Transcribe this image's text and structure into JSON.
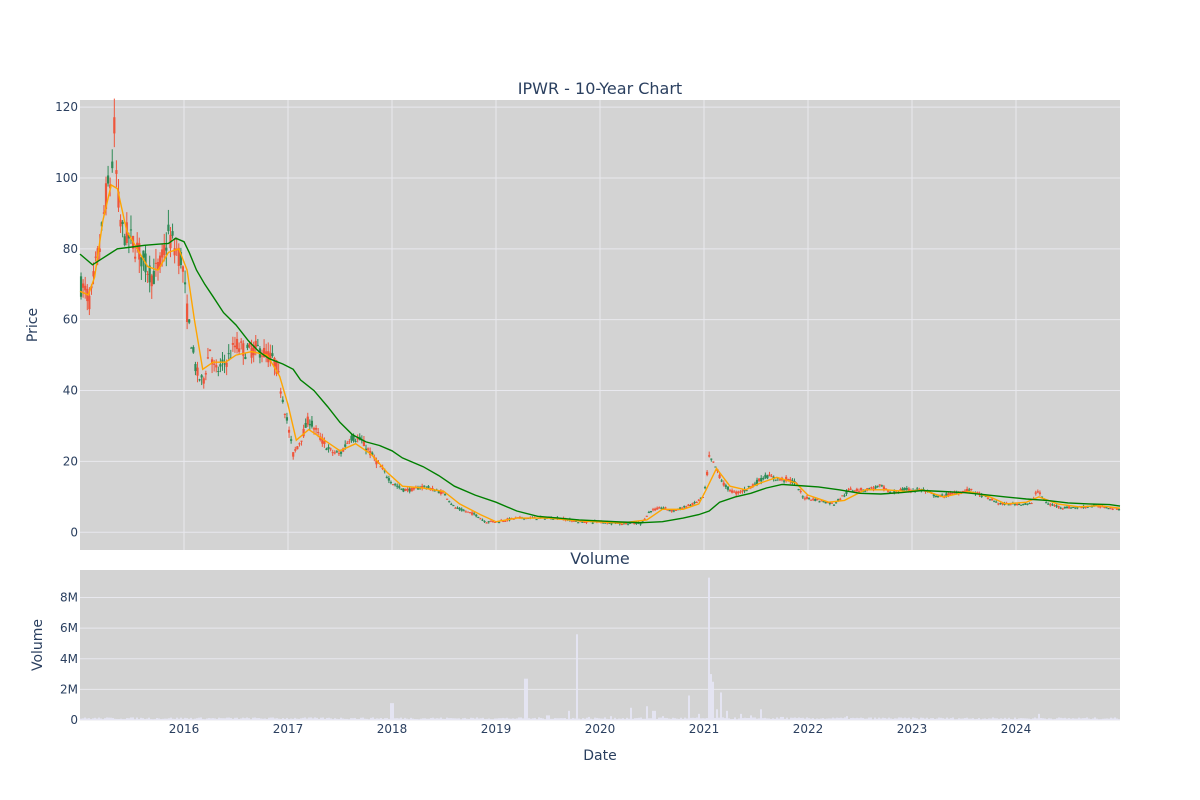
{
  "chart_data": [
    {
      "type": "candlestick",
      "title": "IPWR - 10-Year Chart",
      "xlabel": "",
      "ylabel": "Price",
      "ylim": [
        -5,
        122
      ],
      "xlim": [
        2015.0,
        2025.0
      ],
      "grid": true,
      "x_ticks": [
        "2016",
        "2017",
        "2018",
        "2019",
        "2020",
        "2021",
        "2022",
        "2023",
        "2024"
      ],
      "y_ticks": [
        0,
        20,
        40,
        60,
        80,
        100,
        120
      ],
      "colors": {
        "increasing": "#2e8b57",
        "decreasing": "#ef553b",
        "ma_short": "#ffa500",
        "ma_long": "#008000",
        "background": "#d3d3d3",
        "grid": "#e8e8ee"
      },
      "price_path": [
        [
          2015.0,
          70
        ],
        [
          2015.05,
          68
        ],
        [
          2015.1,
          65
        ],
        [
          2015.15,
          75
        ],
        [
          2015.2,
          82
        ],
        [
          2015.25,
          95
        ],
        [
          2015.3,
          100
        ],
        [
          2015.33,
          113
        ],
        [
          2015.36,
          95
        ],
        [
          2015.4,
          85
        ],
        [
          2015.48,
          83
        ],
        [
          2015.55,
          80
        ],
        [
          2015.62,
          76
        ],
        [
          2015.7,
          72
        ],
        [
          2015.78,
          76
        ],
        [
          2015.85,
          84
        ],
        [
          2015.92,
          80
        ],
        [
          2015.98,
          77
        ],
        [
          2016.03,
          62
        ],
        [
          2016.08,
          52
        ],
        [
          2016.12,
          45
        ],
        [
          2016.18,
          42
        ],
        [
          2016.25,
          52
        ],
        [
          2016.3,
          45
        ],
        [
          2016.4,
          48
        ],
        [
          2016.5,
          53
        ],
        [
          2016.6,
          51
        ],
        [
          2016.7,
          52
        ],
        [
          2016.8,
          50
        ],
        [
          2016.88,
          48
        ],
        [
          2016.95,
          38
        ],
        [
          2017.05,
          22
        ],
        [
          2017.12,
          26
        ],
        [
          2017.2,
          32
        ],
        [
          2017.3,
          27
        ],
        [
          2017.4,
          23
        ],
        [
          2017.5,
          22
        ],
        [
          2017.6,
          27
        ],
        [
          2017.7,
          26
        ],
        [
          2017.8,
          22
        ],
        [
          2017.9,
          18
        ],
        [
          2018.0,
          14
        ],
        [
          2018.1,
          12
        ],
        [
          2018.2,
          12
        ],
        [
          2018.3,
          13
        ],
        [
          2018.4,
          12
        ],
        [
          2018.5,
          11
        ],
        [
          2018.6,
          7
        ],
        [
          2018.7,
          6
        ],
        [
          2018.8,
          5
        ],
        [
          2018.9,
          3
        ],
        [
          2019.0,
          3
        ],
        [
          2019.2,
          4
        ],
        [
          2019.4,
          4
        ],
        [
          2019.6,
          4
        ],
        [
          2019.8,
          3
        ],
        [
          2020.0,
          3
        ],
        [
          2020.2,
          2.5
        ],
        [
          2020.4,
          2.5
        ],
        [
          2020.48,
          6
        ],
        [
          2020.6,
          7
        ],
        [
          2020.7,
          6
        ],
        [
          2020.8,
          7
        ],
        [
          2020.9,
          8
        ],
        [
          2021.0,
          10
        ],
        [
          2021.05,
          21
        ],
        [
          2021.1,
          19
        ],
        [
          2021.2,
          13
        ],
        [
          2021.3,
          11
        ],
        [
          2021.4,
          12
        ],
        [
          2021.5,
          14
        ],
        [
          2021.6,
          16
        ],
        [
          2021.7,
          15
        ],
        [
          2021.8,
          15
        ],
        [
          2021.88,
          14
        ],
        [
          2021.95,
          10
        ],
        [
          2022.1,
          9
        ],
        [
          2022.25,
          8
        ],
        [
          2022.4,
          12
        ],
        [
          2022.55,
          12
        ],
        [
          2022.7,
          13
        ],
        [
          2022.8,
          11
        ],
        [
          2022.9,
          12
        ],
        [
          2023.0,
          12
        ],
        [
          2023.1,
          12
        ],
        [
          2023.25,
          10
        ],
        [
          2023.4,
          11
        ],
        [
          2023.55,
          12
        ],
        [
          2023.7,
          10
        ],
        [
          2023.85,
          8
        ],
        [
          2024.0,
          8
        ],
        [
          2024.15,
          8
        ],
        [
          2024.2,
          12
        ],
        [
          2024.3,
          8
        ],
        [
          2024.45,
          7
        ],
        [
          2024.6,
          7
        ],
        [
          2024.75,
          7.5
        ],
        [
          2024.9,
          7
        ],
        [
          2025.0,
          6.5
        ]
      ],
      "series": [
        {
          "name": "",
          "values": [
            [
              2015.0,
              68
            ],
            [
              2015.08,
              67
            ],
            [
              2015.14,
              72
            ],
            [
              2015.22,
              88
            ],
            [
              2015.3,
              98
            ],
            [
              2015.36,
              97
            ],
            [
              2015.45,
              85
            ],
            [
              2015.55,
              80
            ],
            [
              2015.65,
              75
            ],
            [
              2015.75,
              74
            ],
            [
              2015.85,
              79
            ],
            [
              2015.95,
              80
            ],
            [
              2016.03,
              74
            ],
            [
              2016.1,
              60
            ],
            [
              2016.18,
              46
            ],
            [
              2016.28,
              48
            ],
            [
              2016.4,
              48
            ],
            [
              2016.5,
              50
            ],
            [
              2016.65,
              51
            ],
            [
              2016.8,
              50
            ],
            [
              2016.92,
              44
            ],
            [
              2017.0,
              36
            ],
            [
              2017.08,
              26
            ],
            [
              2017.2,
              29
            ],
            [
              2017.35,
              26
            ],
            [
              2017.5,
              23
            ],
            [
              2017.65,
              25
            ],
            [
              2017.8,
              22
            ],
            [
              2017.95,
              17
            ],
            [
              2018.1,
              13
            ],
            [
              2018.3,
              12.5
            ],
            [
              2018.5,
              11.5
            ],
            [
              2018.65,
              8
            ],
            [
              2018.85,
              5
            ],
            [
              2019.0,
              3
            ],
            [
              2019.2,
              4
            ],
            [
              2019.5,
              4
            ],
            [
              2019.8,
              3.2
            ],
            [
              2020.2,
              2.6
            ],
            [
              2020.45,
              3.5
            ],
            [
              2020.6,
              6.5
            ],
            [
              2020.8,
              6.5
            ],
            [
              2020.95,
              8
            ],
            [
              2021.02,
              12
            ],
            [
              2021.12,
              18
            ],
            [
              2021.25,
              13
            ],
            [
              2021.4,
              12
            ],
            [
              2021.55,
              14
            ],
            [
              2021.7,
              15.5
            ],
            [
              2021.88,
              14
            ],
            [
              2022.0,
              10.5
            ],
            [
              2022.2,
              8.5
            ],
            [
              2022.35,
              9
            ],
            [
              2022.55,
              12
            ],
            [
              2022.75,
              12
            ],
            [
              2022.95,
              11.5
            ],
            [
              2023.1,
              12
            ],
            [
              2023.3,
              10
            ],
            [
              2023.55,
              11.5
            ],
            [
              2023.75,
              10
            ],
            [
              2023.9,
              8
            ],
            [
              2024.1,
              8.5
            ],
            [
              2024.22,
              10
            ],
            [
              2024.4,
              8
            ],
            [
              2024.6,
              7.2
            ],
            [
              2024.8,
              7.5
            ],
            [
              2025.0,
              6.8
            ]
          ]
        },
        {
          "name": "",
          "values": [
            [
              2015.0,
              78.5
            ],
            [
              2015.06,
              77
            ],
            [
              2015.12,
              75.5
            ],
            [
              2015.2,
              77
            ],
            [
              2015.28,
              78.5
            ],
            [
              2015.36,
              80
            ],
            [
              2015.5,
              80.5
            ],
            [
              2015.62,
              81
            ],
            [
              2015.75,
              81.3
            ],
            [
              2015.85,
              81.5
            ],
            [
              2015.92,
              83
            ],
            [
              2016.0,
              82
            ],
            [
              2016.05,
              79
            ],
            [
              2016.12,
              74
            ],
            [
              2016.2,
              70
            ],
            [
              2016.28,
              66.5
            ],
            [
              2016.38,
              62
            ],
            [
              2016.5,
              58.5
            ],
            [
              2016.62,
              54
            ],
            [
              2016.72,
              51
            ],
            [
              2016.82,
              49
            ],
            [
              2016.95,
              47.5
            ],
            [
              2017.05,
              46
            ],
            [
              2017.12,
              43
            ],
            [
              2017.25,
              40
            ],
            [
              2017.38,
              35.5
            ],
            [
              2017.5,
              31
            ],
            [
              2017.62,
              27.5
            ],
            [
              2017.75,
              25.5
            ],
            [
              2017.88,
              24.5
            ],
            [
              2018.0,
              23
            ],
            [
              2018.1,
              21
            ],
            [
              2018.3,
              18.5
            ],
            [
              2018.45,
              16
            ],
            [
              2018.6,
              13
            ],
            [
              2018.8,
              10.5
            ],
            [
              2019.0,
              8.5
            ],
            [
              2019.2,
              6
            ],
            [
              2019.4,
              4.5
            ],
            [
              2019.6,
              4
            ],
            [
              2019.8,
              3.5
            ],
            [
              2020.0,
              3.2
            ],
            [
              2020.2,
              2.9
            ],
            [
              2020.4,
              2.7
            ],
            [
              2020.6,
              3
            ],
            [
              2020.8,
              4
            ],
            [
              2020.95,
              5
            ],
            [
              2021.05,
              6
            ],
            [
              2021.15,
              8.5
            ],
            [
              2021.3,
              10
            ],
            [
              2021.45,
              11
            ],
            [
              2021.6,
              12.5
            ],
            [
              2021.75,
              13.5
            ],
            [
              2021.9,
              13.2
            ],
            [
              2022.1,
              12.8
            ],
            [
              2022.3,
              12
            ],
            [
              2022.5,
              11
            ],
            [
              2022.7,
              10.8
            ],
            [
              2022.9,
              11.2
            ],
            [
              2023.1,
              11.8
            ],
            [
              2023.3,
              11.5
            ],
            [
              2023.5,
              11.2
            ],
            [
              2023.7,
              10.6
            ],
            [
              2023.9,
              10
            ],
            [
              2024.1,
              9.4
            ],
            [
              2024.3,
              9
            ],
            [
              2024.5,
              8.3
            ],
            [
              2024.7,
              8
            ],
            [
              2024.9,
              7.8
            ],
            [
              2025.0,
              7.4
            ]
          ]
        }
      ]
    },
    {
      "type": "bar",
      "title": "Volume",
      "xlabel": "Date",
      "ylabel": "Volume",
      "ylim": [
        0,
        9800000
      ],
      "xlim": [
        2015.0,
        2025.0
      ],
      "x_ticks": [
        "2016",
        "2017",
        "2018",
        "2019",
        "2020",
        "2021",
        "2022",
        "2023",
        "2024"
      ],
      "y_ticks": [
        "0",
        "2M",
        "4M",
        "6M",
        "8M"
      ],
      "y_tick_values": [
        0,
        2000000,
        4000000,
        6000000,
        8000000
      ],
      "colors": {
        "bar": "#e6e6f5"
      },
      "spikes": [
        [
          2017.0,
          60000
        ],
        [
          2017.6,
          120000
        ],
        [
          2018.0,
          1100000
        ],
        [
          2018.4,
          150000
        ],
        [
          2018.8,
          90000
        ],
        [
          2019.0,
          100000
        ],
        [
          2019.29,
          2700000
        ],
        [
          2019.5,
          300000
        ],
        [
          2019.7,
          600000
        ],
        [
          2019.78,
          5600000
        ],
        [
          2019.9,
          200000
        ],
        [
          2020.1,
          250000
        ],
        [
          2020.3,
          800000
        ],
        [
          2020.45,
          900000
        ],
        [
          2020.52,
          600000
        ],
        [
          2020.6,
          250000
        ],
        [
          2020.85,
          1600000
        ],
        [
          2020.95,
          400000
        ],
        [
          2021.05,
          9300000
        ],
        [
          2021.07,
          3000000
        ],
        [
          2021.09,
          2500000
        ],
        [
          2021.12,
          700000
        ],
        [
          2021.17,
          1800000
        ],
        [
          2021.22,
          600000
        ],
        [
          2021.35,
          400000
        ],
        [
          2021.45,
          300000
        ],
        [
          2021.55,
          700000
        ],
        [
          2021.75,
          200000
        ],
        [
          2022.0,
          120000
        ],
        [
          2022.38,
          250000
        ],
        [
          2022.8,
          100000
        ],
        [
          2023.3,
          80000
        ],
        [
          2024.0,
          60000
        ],
        [
          2024.22,
          400000
        ],
        [
          2024.6,
          60000
        ]
      ]
    }
  ]
}
